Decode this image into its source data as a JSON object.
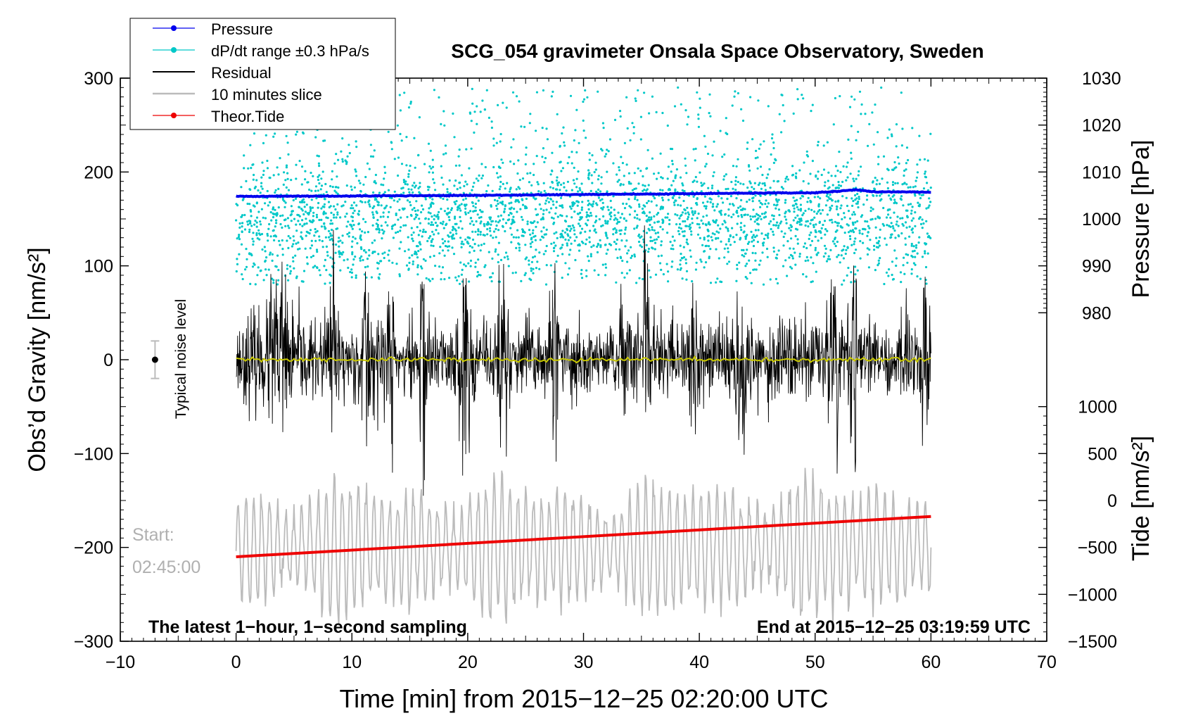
{
  "chart_data": {
    "type": "line",
    "title": "SCG_054 gravimeter Onsala Space Observatory, Sweden",
    "xlabel": "Time [min] from 2015−12−25 02:20:00 UTC",
    "ylabel_left": "Obs’d Gravity [nm/s²]",
    "ylabel_right_top": "Pressure [hPa]",
    "ylabel_right_bottom": "Tide [nm/s²]",
    "xlim": [
      -10,
      70
    ],
    "ylim": [
      -300,
      300
    ],
    "x_ticks": [
      "−10",
      "0",
      "10",
      "20",
      "30",
      "40",
      "50",
      "60",
      "70"
    ],
    "y_ticks_left": [
      "300",
      "200",
      "100",
      "0",
      "−100",
      "−200",
      "−300"
    ],
    "y_ticks_pressure": [
      "1030",
      "1020",
      "1010",
      "1000",
      "990",
      "980"
    ],
    "pressure_range": [
      980,
      1030
    ],
    "y_ticks_tide": [
      "1000",
      "500",
      "0",
      "−500",
      "−1000",
      "−1500"
    ],
    "tide_range": [
      -1500,
      1000
    ],
    "legend": [
      {
        "label": "Pressure",
        "color": "#0000ee",
        "style": "line-dot"
      },
      {
        "label": "dP/dt range ±0.3 hPa/s",
        "color": "#00c8c8",
        "style": "line-dot"
      },
      {
        "label": "Residual",
        "color": "#000000",
        "style": "line"
      },
      {
        "label": "10 minutes slice",
        "color": "#bbbbbb",
        "style": "line"
      },
      {
        "label": "Theor.Tide",
        "color": "#ee0000",
        "style": "line-dot"
      }
    ],
    "annotations": {
      "noise_label": "Typical noise level",
      "noise_value": 0,
      "noise_halfwidth": 20,
      "start_label": "Start:",
      "start_time": "02:45:00",
      "latest": "The latest 1−hour, 1−second sampling",
      "end": "End at 2015−12−25 03:19:59 UTC"
    },
    "series": [
      {
        "name": "Pressure",
        "unit": "hPa",
        "x": [
          0,
          10,
          20,
          30,
          40,
          45,
          50,
          52,
          53.5,
          55,
          60
        ],
        "values": [
          1004.8,
          1004.9,
          1005.0,
          1005.2,
          1005.4,
          1005.5,
          1005.6,
          1005.9,
          1006.2,
          1005.8,
          1005.7
        ]
      },
      {
        "name": "Theor.Tide",
        "unit": "nm/s²",
        "x": [
          0,
          60
        ],
        "values": [
          -600,
          -170
        ]
      },
      {
        "name": "Residual",
        "unit": "nm/s²",
        "x_range": [
          0,
          60
        ],
        "typical_amplitude": 60,
        "max_amplitude": 145
      },
      {
        "name": "10 minutes slice",
        "unit": "nm/s²",
        "x_range": [
          0,
          60
        ],
        "center": -200,
        "typical_amplitude": 45,
        "max_amplitude": 95
      },
      {
        "name": "dP/dt range ±0.3 hPa/s",
        "x_range": [
          0,
          60
        ],
        "y_range": [
          80,
          290
        ]
      },
      {
        "name": "Residual smoothed",
        "color": "#c8c800",
        "x_range": [
          0,
          60
        ],
        "value": 0
      }
    ],
    "colors": {
      "pressure": "#0000ee",
      "dpdt": "#00c8c8",
      "residual": "#000000",
      "slice": "#bbbbbb",
      "tide": "#ee0000",
      "smooth": "#c8c800",
      "noise": "#bbbbbb"
    }
  }
}
